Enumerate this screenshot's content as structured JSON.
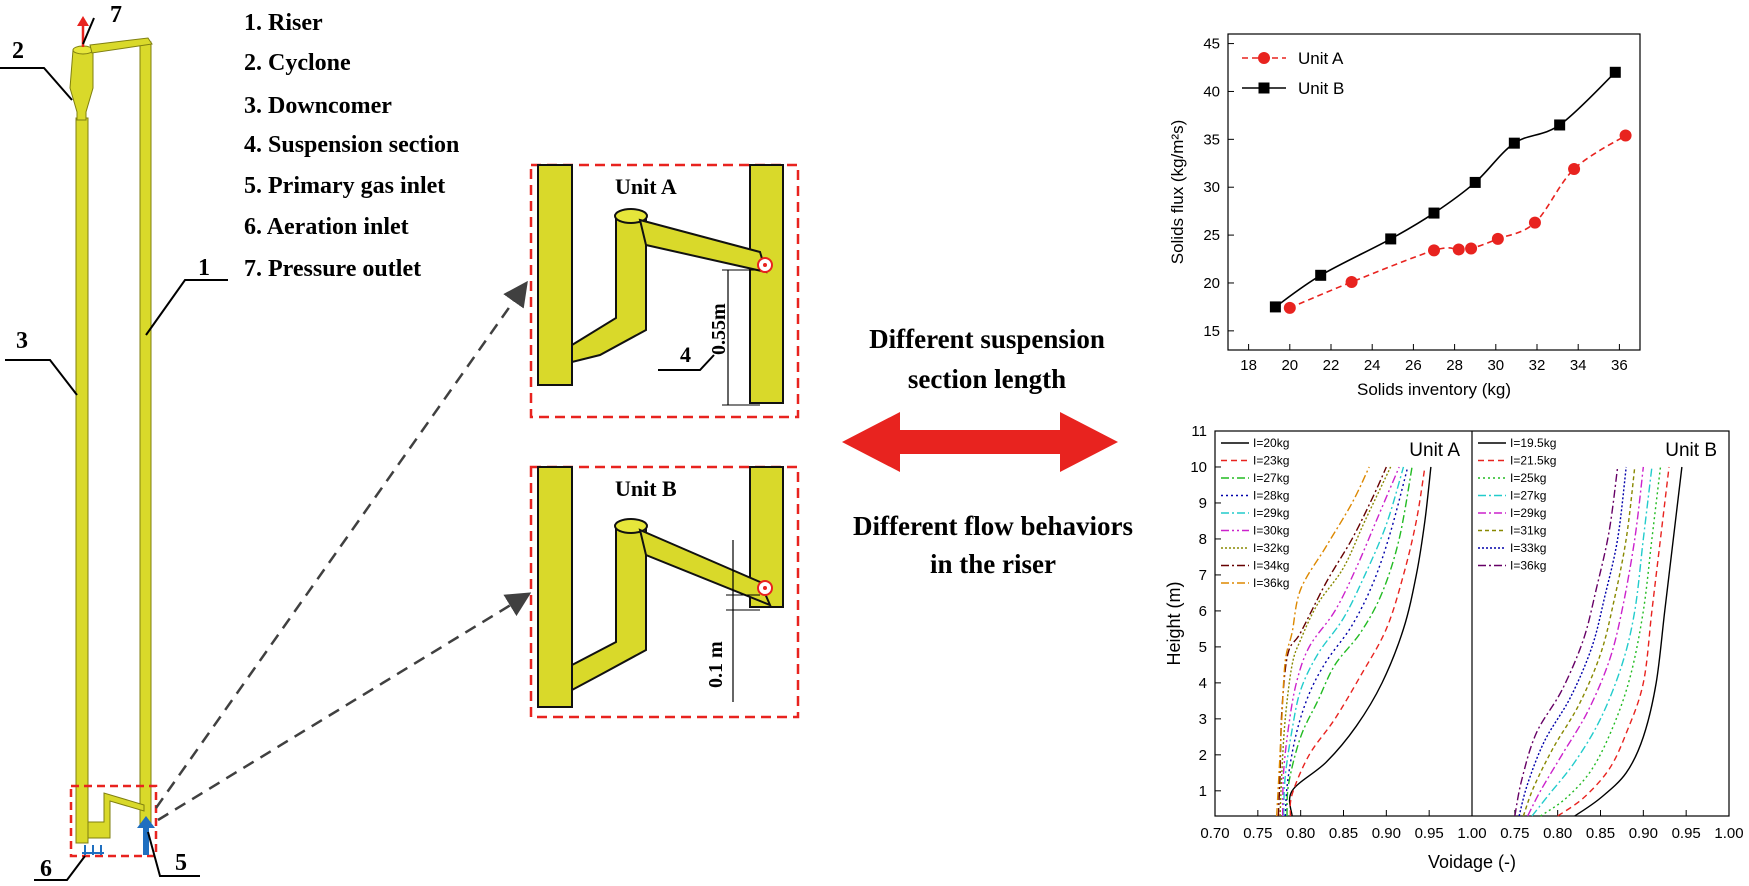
{
  "labels": {
    "components": [
      {
        "num": "1.",
        "text": "Riser"
      },
      {
        "num": "2.",
        "text": "Cyclone"
      },
      {
        "num": "3.",
        "text": "Downcomer"
      },
      {
        "num": "4.",
        "text": "Suspension section"
      },
      {
        "num": "5.",
        "text": "Primary gas inlet"
      },
      {
        "num": "6.",
        "text": "Aeration inlet"
      },
      {
        "num": "7.",
        "text": "Pressure outlet"
      }
    ],
    "callouts": [
      "1",
      "2",
      "3",
      "4",
      "5",
      "6",
      "7"
    ],
    "unit_a": "Unit A",
    "unit_b": "Unit B",
    "dim_a": "0.55m",
    "dim_b": "0.1 m",
    "center_top_line1": "Different suspension",
    "center_top_line2": "section length",
    "center_bottom_line1": "Different flow behaviors",
    "center_bottom_line2": "in the riser"
  },
  "colors": {
    "pipe": "#d9d92a",
    "pipe_dark": "#7f7f10",
    "red": "#e8231f",
    "blue": "#1f6fc0",
    "gray_arrow": "#404040"
  },
  "chart_data": [
    {
      "type": "line",
      "xlabel": "Solids inventory (kg)",
      "ylabel": "Solids flux (kg/m²s)",
      "xlim": [
        17,
        37
      ],
      "ylim": [
        13,
        46
      ],
      "xticks": [
        "18",
        "20",
        "22",
        "24",
        "26",
        "28",
        "30",
        "32",
        "34",
        "36"
      ],
      "yticks": [
        "15",
        "20",
        "25",
        "30",
        "35",
        "40",
        "45"
      ],
      "legend": "top-left",
      "series": [
        {
          "name": "Unit A",
          "color": "#e8231f",
          "marker": "circle",
          "dash": "6,4",
          "x": [
            20,
            23,
            27,
            28.2,
            28.8,
            30.1,
            31.9,
            33.8,
            36.3
          ],
          "y": [
            17.4,
            20.1,
            23.4,
            23.5,
            23.6,
            24.6,
            26.3,
            31.9,
            35.4
          ]
        },
        {
          "name": "Unit B",
          "color": "#000000",
          "marker": "square",
          "dash": "",
          "x": [
            19.3,
            21.5,
            24.9,
            27,
            29,
            30.9,
            33.1,
            35.8
          ],
          "y": [
            17.5,
            20.8,
            24.6,
            27.3,
            30.5,
            34.6,
            36.5,
            42
          ]
        }
      ]
    },
    {
      "type": "line",
      "xlabel": "Voidage (-)",
      "ylabel": "Height (m)",
      "xticks_left": [
        "0.70",
        "0.75",
        "0.80",
        "0.85",
        "0.90",
        "0.95",
        "1.00"
      ],
      "xticks_right": [
        "0.75",
        "0.80",
        "0.85",
        "0.90",
        "0.95",
        "1.00"
      ],
      "yticks": [
        "1",
        "2",
        "3",
        "4",
        "5",
        "6",
        "7",
        "8",
        "9",
        "10",
        "11"
      ],
      "xlim": [
        0.7,
        1.0
      ],
      "ylim": [
        0.3,
        11
      ],
      "panels": [
        {
          "title": "Unit A",
          "series": [
            {
              "name": "I=20kg",
              "color": "#000000",
              "dash": "",
              "points": [
                [
                  0.79,
                  0.3
                ],
                [
                  0.79,
                  1
                ],
                [
                  0.83,
                  1.8
                ],
                [
                  0.865,
                  2.8
                ],
                [
                  0.895,
                  4
                ],
                [
                  0.92,
                  5.5
                ],
                [
                  0.935,
                  7
                ],
                [
                  0.945,
                  8.5
                ],
                [
                  0.952,
                  10
                ]
              ]
            },
            {
              "name": "I=23kg",
              "color": "#e8231f",
              "dash": "6,4",
              "points": [
                [
                  0.788,
                  0.3
                ],
                [
                  0.79,
                  0.9
                ],
                [
                  0.81,
                  2
                ],
                [
                  0.84,
                  3
                ],
                [
                  0.87,
                  4.2
                ],
                [
                  0.9,
                  5.5
                ],
                [
                  0.92,
                  7
                ],
                [
                  0.935,
                  8.5
                ],
                [
                  0.945,
                  10
                ]
              ]
            },
            {
              "name": "I=27kg",
              "color": "#22bb22",
              "dash": "8,3,2,3",
              "points": [
                [
                  0.784,
                  0.3
                ],
                [
                  0.786,
                  1.2
                ],
                [
                  0.8,
                  2.5
                ],
                [
                  0.82,
                  3.5
                ],
                [
                  0.84,
                  4.5
                ],
                [
                  0.87,
                  5.4
                ],
                [
                  0.895,
                  6.5
                ],
                [
                  0.915,
                  8
                ],
                [
                  0.93,
                  10
                ]
              ]
            },
            {
              "name": "I=28kg",
              "color": "#0000aa",
              "dash": "2,3",
              "points": [
                [
                  0.782,
                  0.3
                ],
                [
                  0.785,
                  1.3
                ],
                [
                  0.795,
                  2.6
                ],
                [
                  0.81,
                  3.7
                ],
                [
                  0.83,
                  4.6
                ],
                [
                  0.86,
                  5.6
                ],
                [
                  0.885,
                  6.8
                ],
                [
                  0.905,
                  8.2
                ],
                [
                  0.925,
                  10
                ]
              ]
            },
            {
              "name": "I=29kg",
              "color": "#22cccc",
              "dash": "8,3,2,3",
              "points": [
                [
                  0.78,
                  0.3
                ],
                [
                  0.782,
                  1.4
                ],
                [
                  0.79,
                  2.7
                ],
                [
                  0.8,
                  3.8
                ],
                [
                  0.82,
                  4.8
                ],
                [
                  0.85,
                  5.8
                ],
                [
                  0.875,
                  7
                ],
                [
                  0.9,
                  8.4
                ],
                [
                  0.92,
                  10
                ]
              ]
            },
            {
              "name": "I=30kg",
              "color": "#cc22cc",
              "dash": "8,3,2,3,2,3",
              "points": [
                [
                  0.779,
                  0.3
                ],
                [
                  0.78,
                  1.5
                ],
                [
                  0.786,
                  2.8
                ],
                [
                  0.795,
                  4
                ],
                [
                  0.81,
                  5
                ],
                [
                  0.84,
                  6
                ],
                [
                  0.865,
                  7.2
                ],
                [
                  0.89,
                  8.6
                ],
                [
                  0.915,
                  10
                ]
              ]
            },
            {
              "name": "I=32kg",
              "color": "#888800",
              "dash": "2,2",
              "points": [
                [
                  0.776,
                  0.3
                ],
                [
                  0.778,
                  1.5
                ],
                [
                  0.782,
                  3
                ],
                [
                  0.79,
                  4.5
                ],
                [
                  0.8,
                  5.2
                ],
                [
                  0.82,
                  6.2
                ],
                [
                  0.85,
                  7.2
                ],
                [
                  0.875,
                  8.5
                ],
                [
                  0.905,
                  10
                ]
              ]
            },
            {
              "name": "I=34kg",
              "color": "#660000",
              "dash": "8,3,2,3",
              "points": [
                [
                  0.774,
                  0.3
                ],
                [
                  0.776,
                  1.5
                ],
                [
                  0.778,
                  3.2
                ],
                [
                  0.785,
                  4.8
                ],
                [
                  0.8,
                  5.4
                ],
                [
                  0.83,
                  6.8
                ],
                [
                  0.86,
                  8
                ],
                [
                  0.885,
                  9.2
                ],
                [
                  0.9,
                  10
                ]
              ]
            },
            {
              "name": "I=36kg",
              "color": "#dd8800",
              "dash": "8,3,2,3",
              "points": [
                [
                  0.772,
                  0.3
                ],
                [
                  0.775,
                  1.6
                ],
                [
                  0.778,
                  3
                ],
                [
                  0.782,
                  4.6
                ],
                [
                  0.79,
                  5.4
                ],
                [
                  0.8,
                  6.6
                ],
                [
                  0.83,
                  7.8
                ],
                [
                  0.86,
                  9
                ],
                [
                  0.88,
                  10
                ]
              ]
            }
          ]
        },
        {
          "title": "Unit B",
          "series": [
            {
              "name": "I=19.5kg",
              "color": "#000000",
              "dash": "",
              "points": [
                [
                  0.82,
                  0.3
                ],
                [
                  0.85,
                  0.8
                ],
                [
                  0.88,
                  1.5
                ],
                [
                  0.9,
                  2.5
                ],
                [
                  0.915,
                  4
                ],
                [
                  0.925,
                  6
                ],
                [
                  0.935,
                  8
                ],
                [
                  0.945,
                  10
                ]
              ]
            },
            {
              "name": "I=21.5kg",
              "color": "#e8231f",
              "dash": "6,4",
              "points": [
                [
                  0.8,
                  0.3
                ],
                [
                  0.83,
                  0.8
                ],
                [
                  0.86,
                  1.6
                ],
                [
                  0.88,
                  2.6
                ],
                [
                  0.9,
                  4
                ],
                [
                  0.91,
                  6
                ],
                [
                  0.92,
                  8
                ],
                [
                  0.93,
                  10
                ]
              ]
            },
            {
              "name": "I=25kg",
              "color": "#22bb22",
              "dash": "2,3",
              "points": [
                [
                  0.78,
                  0.3
                ],
                [
                  0.81,
                  0.8
                ],
                [
                  0.84,
                  1.6
                ],
                [
                  0.865,
                  2.8
                ],
                [
                  0.885,
                  4.2
                ],
                [
                  0.9,
                  6
                ],
                [
                  0.91,
                  8
                ],
                [
                  0.92,
                  10
                ]
              ]
            },
            {
              "name": "I=27kg",
              "color": "#22cccc",
              "dash": "8,3,2,3",
              "points": [
                [
                  0.77,
                  0.3
                ],
                [
                  0.79,
                  0.9
                ],
                [
                  0.82,
                  1.8
                ],
                [
                  0.85,
                  3
                ],
                [
                  0.875,
                  4.5
                ],
                [
                  0.89,
                  6
                ],
                [
                  0.9,
                  8
                ],
                [
                  0.91,
                  10
                ]
              ]
            },
            {
              "name": "I=29kg",
              "color": "#cc22cc",
              "dash": "8,3,2,3",
              "points": [
                [
                  0.765,
                  0.3
                ],
                [
                  0.78,
                  1
                ],
                [
                  0.805,
                  2
                ],
                [
                  0.835,
                  3.2
                ],
                [
                  0.86,
                  4.6
                ],
                [
                  0.875,
                  6
                ],
                [
                  0.89,
                  8
                ],
                [
                  0.9,
                  10
                ]
              ]
            },
            {
              "name": "I=31kg",
              "color": "#888800",
              "dash": "4,3",
              "points": [
                [
                  0.76,
                  0.3
                ],
                [
                  0.772,
                  1.1
                ],
                [
                  0.795,
                  2.2
                ],
                [
                  0.825,
                  3.4
                ],
                [
                  0.85,
                  4.8
                ],
                [
                  0.865,
                  6.2
                ],
                [
                  0.88,
                  8
                ],
                [
                  0.89,
                  10
                ]
              ]
            },
            {
              "name": "I=33kg",
              "color": "#0000aa",
              "dash": "2,2",
              "points": [
                [
                  0.755,
                  0.3
                ],
                [
                  0.765,
                  1.2
                ],
                [
                  0.785,
                  2.4
                ],
                [
                  0.815,
                  3.6
                ],
                [
                  0.84,
                  5
                ],
                [
                  0.855,
                  6.4
                ],
                [
                  0.87,
                  8
                ],
                [
                  0.88,
                  10
                ]
              ]
            },
            {
              "name": "I=36kg",
              "color": "#660066",
              "dash": "8,3,2,3",
              "points": [
                [
                  0.75,
                  0.3
                ],
                [
                  0.758,
                  1.3
                ],
                [
                  0.775,
                  2.6
                ],
                [
                  0.805,
                  3.8
                ],
                [
                  0.83,
                  5.2
                ],
                [
                  0.845,
                  6.6
                ],
                [
                  0.86,
                  8.2
                ],
                [
                  0.87,
                  10
                ]
              ]
            }
          ]
        }
      ]
    }
  ]
}
